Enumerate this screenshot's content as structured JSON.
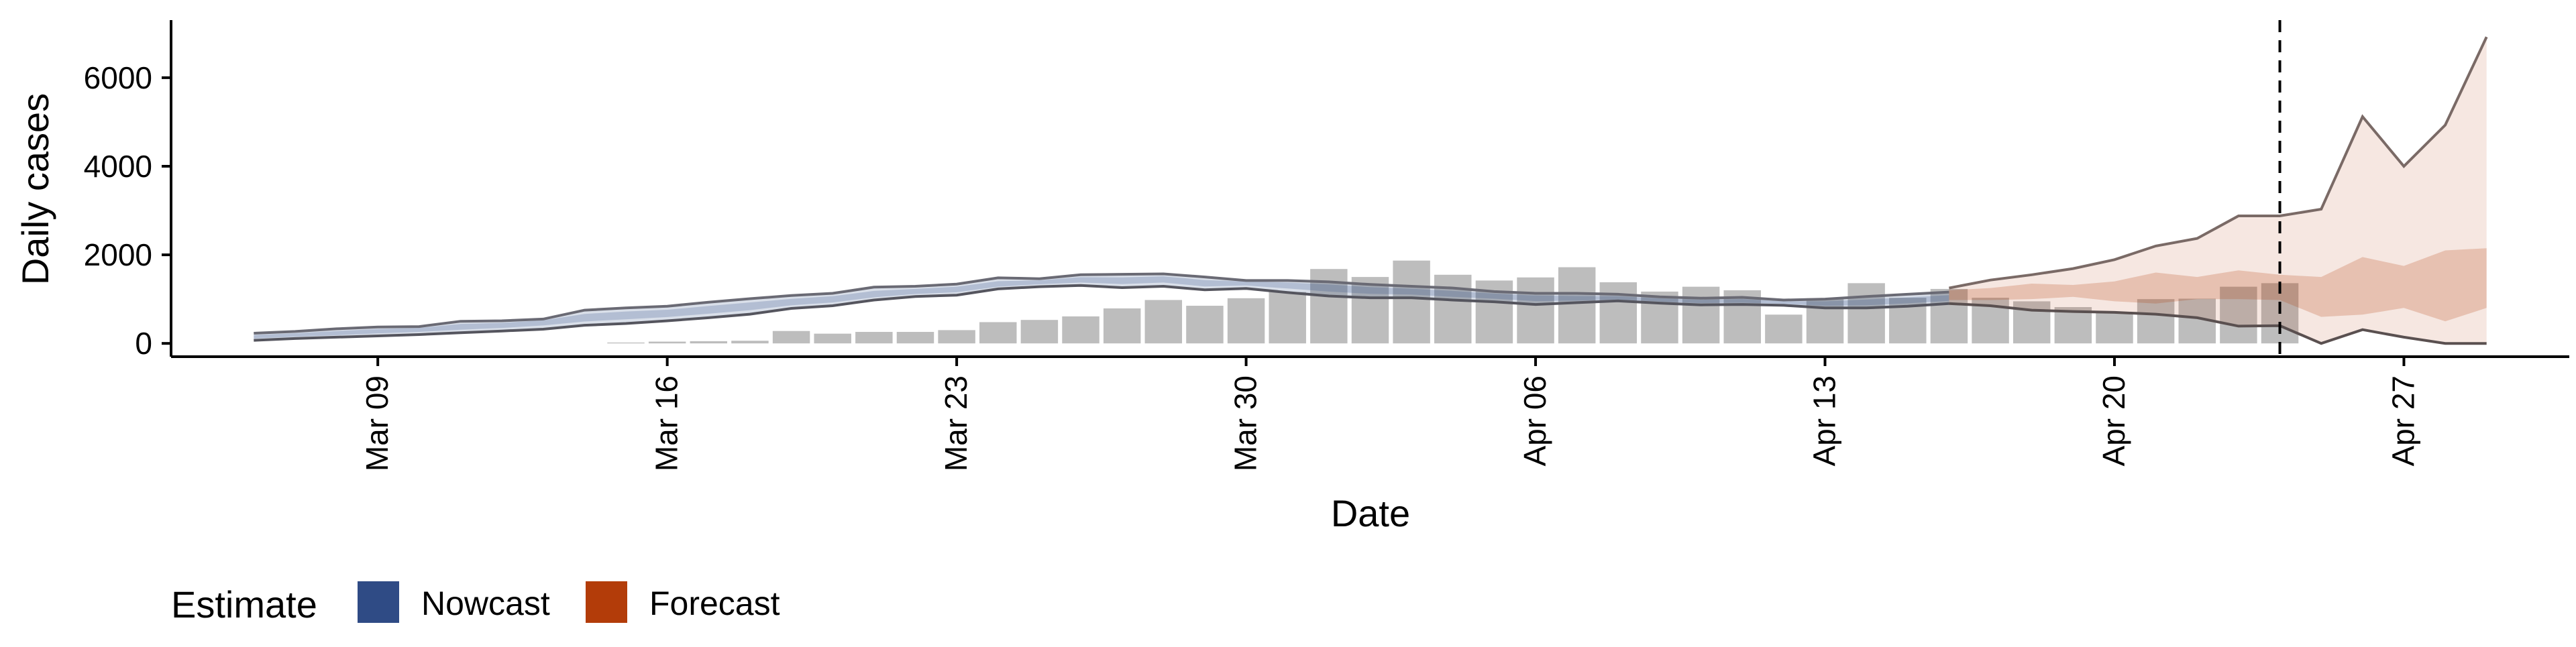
{
  "chart_data": {
    "type": "bar",
    "xlabel": "Date",
    "ylabel": "Daily cases",
    "x_range": [
      "2020-03-04",
      "2020-05-01"
    ],
    "ylim": [
      -300,
      7300
    ],
    "x_ticks": [
      {
        "date": "2020-03-09",
        "label": "Mar 09"
      },
      {
        "date": "2020-03-16",
        "label": "Mar 16"
      },
      {
        "date": "2020-03-23",
        "label": "Mar 23"
      },
      {
        "date": "2020-03-30",
        "label": "Mar 30"
      },
      {
        "date": "2020-04-06",
        "label": "Apr 06"
      },
      {
        "date": "2020-04-13",
        "label": "Apr 13"
      },
      {
        "date": "2020-04-20",
        "label": "Apr 20"
      },
      {
        "date": "2020-04-27",
        "label": "Apr 27"
      }
    ],
    "y_ticks": [
      {
        "value": 0,
        "label": "0"
      },
      {
        "value": 2000,
        "label": "2000"
      },
      {
        "value": 4000,
        "label": "4000"
      },
      {
        "value": 6000,
        "label": "6000"
      }
    ],
    "grid": false,
    "forecast_date": "2020-04-24",
    "reported_cases": {
      "dates": [
        "2020-03-15",
        "2020-03-16",
        "2020-03-17",
        "2020-03-18",
        "2020-03-19",
        "2020-03-20",
        "2020-03-21",
        "2020-03-22",
        "2020-03-23",
        "2020-03-24",
        "2020-03-25",
        "2020-03-26",
        "2020-03-27",
        "2020-03-28",
        "2020-03-29",
        "2020-03-30",
        "2020-03-31",
        "2020-04-01",
        "2020-04-02",
        "2020-04-03",
        "2020-04-04",
        "2020-04-05",
        "2020-04-06",
        "2020-04-07",
        "2020-04-08",
        "2020-04-09",
        "2020-04-10",
        "2020-04-11",
        "2020-04-12",
        "2020-04-13",
        "2020-04-14",
        "2020-04-15",
        "2020-04-16",
        "2020-04-17",
        "2020-04-18",
        "2020-04-19",
        "2020-04-20",
        "2020-04-21",
        "2020-04-22",
        "2020-04-23",
        "2020-04-24"
      ],
      "values": [
        20,
        40,
        50,
        60,
        280,
        220,
        260,
        260,
        300,
        480,
        530,
        610,
        790,
        980,
        850,
        1020,
        1160,
        1680,
        1500,
        1870,
        1550,
        1420,
        1490,
        1720,
        1380,
        1170,
        1280,
        1200,
        650,
        1020,
        1360,
        1030,
        1230,
        1030,
        950,
        820,
        700,
        1000,
        1010,
        1280,
        1360
      ]
    },
    "series": [
      {
        "name": "Nowcast",
        "color": "#2f4b85",
        "dates": [
          "2020-03-06",
          "2020-03-07",
          "2020-03-08",
          "2020-03-09",
          "2020-03-10",
          "2020-03-11",
          "2020-03-12",
          "2020-03-13",
          "2020-03-14",
          "2020-03-15",
          "2020-03-16",
          "2020-03-17",
          "2020-03-18",
          "2020-03-19",
          "2020-03-20",
          "2020-03-21",
          "2020-03-22",
          "2020-03-23",
          "2020-03-24",
          "2020-03-25",
          "2020-03-26",
          "2020-03-27",
          "2020-03-28",
          "2020-03-29",
          "2020-03-30",
          "2020-03-31",
          "2020-04-01",
          "2020-04-02",
          "2020-04-03",
          "2020-04-04",
          "2020-04-05",
          "2020-04-06",
          "2020-04-07",
          "2020-04-08",
          "2020-04-09",
          "2020-04-10",
          "2020-04-11",
          "2020-04-12",
          "2020-04-13",
          "2020-04-14",
          "2020-04-15",
          "2020-04-16"
        ],
        "median": [
          150,
          190,
          230,
          280,
          320,
          380,
          420,
          490,
          580,
          640,
          680,
          760,
          840,
          930,
          1000,
          1100,
          1170,
          1220,
          1330,
          1390,
          1440,
          1420,
          1460,
          1360,
          1380,
          1330,
          1270,
          1210,
          1180,
          1120,
          1080,
          1030,
          1010,
          1020,
          980,
          950,
          960,
          920,
          900,
          920,
          970,
          1020
        ],
        "lower": [
          70,
          110,
          140,
          170,
          200,
          240,
          280,
          320,
          410,
          450,
          510,
          580,
          660,
          790,
          850,
          980,
          1060,
          1090,
          1230,
          1280,
          1310,
          1260,
          1290,
          1210,
          1240,
          1150,
          1070,
          1030,
          1030,
          980,
          940,
          880,
          920,
          960,
          910,
          870,
          880,
          860,
          800,
          800,
          840,
          900
        ],
        "upper": [
          230,
          270,
          330,
          370,
          380,
          500,
          510,
          550,
          750,
          800,
          840,
          930,
          1010,
          1080,
          1130,
          1270,
          1290,
          1340,
          1480,
          1460,
          1550,
          1560,
          1570,
          1500,
          1420,
          1420,
          1390,
          1330,
          1290,
          1250,
          1170,
          1130,
          1130,
          1110,
          1050,
          1020,
          1040,
          980,
          1000,
          1060,
          1110,
          1160
        ]
      },
      {
        "name": "Forecast",
        "color": "#b33c09",
        "dates": [
          "2020-04-16",
          "2020-04-17",
          "2020-04-18",
          "2020-04-19",
          "2020-04-20",
          "2020-04-21",
          "2020-04-22",
          "2020-04-23",
          "2020-04-24",
          "2020-04-25",
          "2020-04-26",
          "2020-04-27",
          "2020-04-28",
          "2020-04-29"
        ],
        "median": [
          1050,
          1050,
          1100,
          1150,
          1130,
          1200,
          1230,
          1300,
          1330,
          1400,
          1500,
          1400,
          1500,
          1600
        ],
        "lower": [
          900,
          850,
          750,
          720,
          700,
          660,
          580,
          390,
          400,
          0,
          310,
          140,
          0,
          0
        ],
        "upper": [
          1250,
          1430,
          1550,
          1690,
          1890,
          2200,
          2370,
          2880,
          2880,
          3030,
          5120,
          4000,
          4930,
          6920
        ],
        "inner_lower": [
          980,
          980,
          1000,
          1050,
          950,
          900,
          1000,
          1000,
          980,
          600,
          650,
          800,
          500,
          800
        ],
        "inner_upper": [
          1200,
          1250,
          1350,
          1320,
          1400,
          1600,
          1500,
          1650,
          1550,
          1500,
          1950,
          1750,
          2100,
          2150
        ]
      }
    ],
    "legend": {
      "title": "Estimate",
      "placement": "bottom-left",
      "entries": [
        {
          "label": "Nowcast",
          "color": "#2f4b85"
        },
        {
          "label": "Forecast",
          "color": "#b33c09"
        }
      ]
    }
  }
}
